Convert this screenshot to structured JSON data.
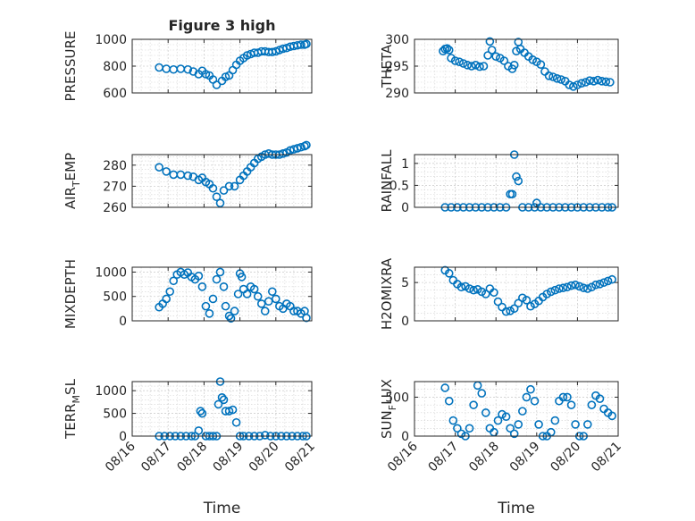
{
  "figure": {
    "title": "Figure 3 high",
    "marker_color": "#0072bd",
    "x_tick_labels": [
      "08/16",
      "08/17",
      "08/18",
      "08/19",
      "08/20",
      "08/21"
    ],
    "x_axis_label": "Time"
  },
  "chart_data": [
    {
      "type": "scatter",
      "id": "pressure",
      "ylabel": "PRESSURE",
      "title": "Figure 3 high",
      "ylim": [
        600,
        1000
      ],
      "yticks": [
        600,
        800,
        1000
      ],
      "xlim": [
        0,
        5
      ],
      "grid": true,
      "x": [
        0.75,
        0.95,
        1.15,
        1.35,
        1.55,
        1.7,
        1.85,
        1.95,
        2.05,
        2.15,
        2.25,
        2.35,
        2.5,
        2.6,
        2.7,
        2.8,
        2.9,
        3.0,
        3.1,
        3.2,
        3.3,
        3.4,
        3.5,
        3.6,
        3.7,
        3.8,
        3.9,
        4.0,
        4.1,
        4.2,
        4.3,
        4.4,
        4.5,
        4.6,
        4.7,
        4.8,
        4.85
      ],
      "y": [
        790,
        780,
        775,
        780,
        775,
        760,
        740,
        765,
        740,
        730,
        700,
        660,
        690,
        720,
        730,
        770,
        810,
        840,
        860,
        880,
        890,
        900,
        900,
        910,
        910,
        905,
        905,
        910,
        920,
        930,
        935,
        945,
        950,
        955,
        960,
        960,
        965
      ]
    },
    {
      "type": "scatter",
      "id": "theta",
      "ylabel": "THETA",
      "ylim": [
        290,
        300
      ],
      "yticks": [
        290,
        295,
        300
      ],
      "xlim": [
        0,
        5
      ],
      "grid": true,
      "x": [
        0.7,
        0.75,
        0.8,
        0.85,
        0.9,
        1.0,
        1.1,
        1.2,
        1.3,
        1.4,
        1.5,
        1.6,
        1.7,
        1.8,
        1.85,
        1.9,
        2.0,
        2.1,
        2.2,
        2.3,
        2.4,
        2.45,
        2.5,
        2.55,
        2.6,
        2.7,
        2.8,
        2.9,
        3.0,
        3.1,
        3.2,
        3.3,
        3.4,
        3.5,
        3.6,
        3.7,
        3.8,
        3.9,
        4.0,
        4.1,
        4.2,
        4.3,
        4.4,
        4.5,
        4.6,
        4.7,
        4.8
      ],
      "y": [
        297.8,
        298.2,
        298.3,
        298.0,
        296.5,
        296.0,
        295.8,
        295.5,
        295.2,
        295.0,
        295.2,
        294.9,
        295.0,
        297.0,
        299.6,
        298.0,
        296.8,
        296.5,
        296.0,
        295.0,
        294.5,
        295.2,
        297.8,
        299.5,
        298.2,
        297.5,
        296.8,
        296.2,
        295.8,
        295.3,
        294.0,
        293.2,
        293.0,
        292.7,
        292.5,
        292.2,
        291.5,
        291.2,
        291.5,
        291.8,
        292.0,
        292.3,
        292.2,
        292.4,
        292.2,
        292.1,
        292.0
      ]
    },
    {
      "type": "scatter",
      "id": "air_temp",
      "ylabel": "AIR_TEMP",
      "ylim": [
        260,
        285
      ],
      "yticks": [
        260,
        270,
        280
      ],
      "xlim": [
        0,
        5
      ],
      "grid": true,
      "x": [
        0.75,
        0.95,
        1.15,
        1.35,
        1.55,
        1.7,
        1.85,
        1.95,
        2.05,
        2.15,
        2.25,
        2.35,
        2.45,
        2.55,
        2.7,
        2.85,
        3.0,
        3.1,
        3.2,
        3.3,
        3.4,
        3.5,
        3.6,
        3.7,
        3.8,
        3.9,
        4.0,
        4.1,
        4.2,
        4.3,
        4.4,
        4.5,
        4.6,
        4.7,
        4.8,
        4.85
      ],
      "y": [
        279,
        277,
        275.5,
        275.5,
        275,
        274.5,
        273,
        274,
        272,
        271,
        269,
        265,
        262,
        268,
        270,
        270,
        273,
        275,
        277,
        279,
        281,
        283,
        284,
        285,
        285.5,
        285,
        285,
        285,
        285.5,
        286,
        287,
        287.5,
        288,
        288.5,
        289,
        289.5
      ]
    },
    {
      "type": "scatter",
      "id": "rainfall",
      "ylabel": "RAINFALL",
      "ylim": [
        0,
        1.2
      ],
      "yticks": [
        0,
        0.5,
        1
      ],
      "xlim": [
        0,
        5
      ],
      "grid": true,
      "x": [
        0.75,
        0.9,
        1.05,
        1.2,
        1.35,
        1.5,
        1.65,
        1.8,
        1.95,
        2.1,
        2.25,
        2.35,
        2.4,
        2.45,
        2.5,
        2.55,
        2.65,
        2.8,
        2.95,
        3.0,
        3.1,
        3.25,
        3.4,
        3.55,
        3.7,
        3.85,
        4.0,
        4.15,
        4.3,
        4.45,
        4.6,
        4.75,
        4.85
      ],
      "y": [
        0,
        0,
        0,
        0,
        0,
        0,
        0,
        0,
        0,
        0,
        0,
        0.3,
        0.3,
        1.2,
        0.7,
        0.6,
        0,
        0,
        0,
        0.1,
        0,
        0,
        0,
        0,
        0,
        0,
        0,
        0,
        0,
        0,
        0,
        0,
        0
      ]
    },
    {
      "type": "scatter",
      "id": "mixdepth",
      "ylabel": "MIXDEPTH",
      "ylim": [
        0,
        1100
      ],
      "yticks": [
        0,
        500,
        1000
      ],
      "xlim": [
        0,
        5
      ],
      "grid": true,
      "x": [
        0.75,
        0.85,
        0.95,
        1.05,
        1.15,
        1.25,
        1.35,
        1.45,
        1.55,
        1.65,
        1.75,
        1.85,
        1.95,
        2.05,
        2.15,
        2.25,
        2.35,
        2.45,
        2.55,
        2.6,
        2.7,
        2.75,
        2.85,
        2.95,
        3.0,
        3.05,
        3.1,
        3.2,
        3.3,
        3.4,
        3.5,
        3.6,
        3.7,
        3.8,
        3.9,
        4.0,
        4.1,
        4.2,
        4.3,
        4.4,
        4.5,
        4.6,
        4.7,
        4.8,
        4.85
      ],
      "y": [
        280,
        350,
        450,
        600,
        820,
        950,
        1000,
        950,
        990,
        900,
        850,
        920,
        700,
        300,
        150,
        450,
        850,
        1000,
        700,
        300,
        100,
        50,
        200,
        550,
        970,
        900,
        650,
        550,
        700,
        650,
        500,
        350,
        200,
        400,
        600,
        450,
        300,
        250,
        350,
        300,
        200,
        200,
        150,
        200,
        60
      ]
    },
    {
      "type": "scatter",
      "id": "h2omixra",
      "ylabel": "H2OMIXRA",
      "ylim": [
        0,
        7
      ],
      "yticks": [
        0,
        5
      ],
      "xlim": [
        0,
        5
      ],
      "grid": true,
      "x": [
        0.75,
        0.85,
        0.95,
        1.05,
        1.15,
        1.25,
        1.35,
        1.45,
        1.55,
        1.65,
        1.75,
        1.85,
        1.95,
        2.05,
        2.15,
        2.25,
        2.35,
        2.45,
        2.55,
        2.65,
        2.75,
        2.85,
        2.95,
        3.05,
        3.15,
        3.25,
        3.35,
        3.45,
        3.55,
        3.65,
        3.75,
        3.85,
        3.95,
        4.05,
        4.15,
        4.25,
        4.35,
        4.45,
        4.55,
        4.65,
        4.75,
        4.85
      ],
      "y": [
        6.6,
        6.2,
        5.3,
        4.8,
        4.4,
        4.5,
        4.2,
        4.0,
        4.1,
        3.8,
        3.5,
        4.2,
        3.7,
        2.5,
        1.8,
        1.2,
        1.3,
        1.6,
        2.3,
        3.0,
        2.7,
        1.9,
        2.2,
        2.6,
        3.1,
        3.5,
        3.8,
        4.0,
        4.2,
        4.3,
        4.4,
        4.6,
        4.7,
        4.5,
        4.3,
        4.2,
        4.4,
        4.7,
        4.8,
        5.0,
        5.2,
        5.4
      ]
    },
    {
      "type": "scatter",
      "id": "terr_msl",
      "ylabel": "TERR_MSL",
      "ylim": [
        0,
        1200
      ],
      "yticks": [
        0,
        500,
        1000
      ],
      "xlim": [
        0,
        5
      ],
      "grid": true,
      "x": [
        0.75,
        0.9,
        1.05,
        1.2,
        1.35,
        1.5,
        1.65,
        1.75,
        1.85,
        1.9,
        1.95,
        2.05,
        2.15,
        2.25,
        2.35,
        2.4,
        2.45,
        2.5,
        2.55,
        2.6,
        2.7,
        2.8,
        2.9,
        3.0,
        3.1,
        3.25,
        3.4,
        3.55,
        3.7,
        3.85,
        4.0,
        4.15,
        4.3,
        4.45,
        4.6,
        4.75,
        4.85
      ],
      "y": [
        0,
        0,
        0,
        0,
        0,
        0,
        0,
        0,
        120,
        550,
        500,
        0,
        0,
        0,
        0,
        700,
        1200,
        850,
        800,
        550,
        550,
        580,
        300,
        0,
        0,
        0,
        0,
        0,
        20,
        0,
        0,
        0,
        0,
        0,
        0,
        0,
        0
      ]
    },
    {
      "type": "scatter",
      "id": "sun_flux",
      "ylabel": "SUN_FLUX",
      "ylim": [
        0,
        700
      ],
      "yticks": [
        0,
        500
      ],
      "xlim": [
        0,
        5
      ],
      "grid": true,
      "x": [
        0.75,
        0.85,
        0.95,
        1.05,
        1.15,
        1.25,
        1.35,
        1.45,
        1.55,
        1.65,
        1.75,
        1.85,
        1.95,
        2.05,
        2.15,
        2.25,
        2.35,
        2.45,
        2.55,
        2.65,
        2.75,
        2.85,
        2.95,
        3.05,
        3.15,
        3.25,
        3.35,
        3.45,
        3.55,
        3.65,
        3.75,
        3.85,
        3.95,
        4.05,
        4.15,
        4.25,
        4.35,
        4.45,
        4.55,
        4.65,
        4.75,
        4.85
      ],
      "y": [
        620,
        450,
        200,
        100,
        30,
        0,
        100,
        400,
        650,
        550,
        300,
        100,
        50,
        200,
        280,
        250,
        100,
        30,
        150,
        320,
        500,
        600,
        450,
        150,
        0,
        0,
        50,
        200,
        450,
        500,
        500,
        400,
        150,
        0,
        0,
        150,
        400,
        520,
        480,
        350,
        300,
        260
      ]
    }
  ]
}
